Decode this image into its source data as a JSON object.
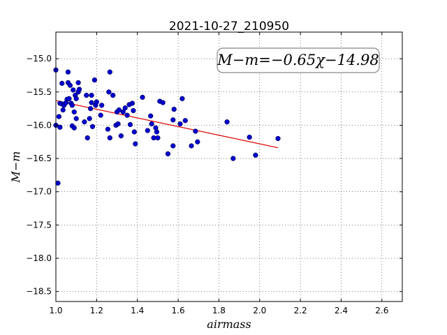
{
  "chart_data": {
    "type": "scatter",
    "title": "2021-10-27_210950",
    "xlabel": "airmass",
    "ylabel": "M−m",
    "xlim": [
      1.0,
      2.7
    ],
    "ylim": [
      -18.65,
      -14.6
    ],
    "x_ticks": [
      1.0,
      1.2,
      1.4,
      1.6,
      1.8,
      2.0,
      2.2,
      2.4,
      2.6
    ],
    "x_tick_labels": [
      "1.0",
      "1.2",
      "1.4",
      "1.6",
      "1.8",
      "2.0",
      "2.2",
      "2.4",
      "2.6"
    ],
    "y_ticks": [
      -15.0,
      -15.5,
      -16.0,
      -16.5,
      -17.0,
      -17.5,
      -18.0,
      -18.5
    ],
    "y_tick_labels": [
      "−15.0",
      "−15.5",
      "−16.0",
      "−16.5",
      "−17.0",
      "−17.5",
      "−18.0",
      "−18.5"
    ],
    "grid": true,
    "annotation": "M−m=−0.65χ−14.98",
    "fit_line": {
      "slope": -0.65,
      "intercept": -14.98,
      "x_range": [
        1.0,
        2.09
      ],
      "color": "#e00000"
    },
    "marker_color": "#0000cc",
    "points": [
      [
        1.0,
        -15.17
      ],
      [
        1.0,
        -16.0
      ],
      [
        1.01,
        -16.87
      ],
      [
        1.015,
        -15.87
      ],
      [
        1.02,
        -15.67
      ],
      [
        1.02,
        -16.03
      ],
      [
        1.03,
        -15.68
      ],
      [
        1.03,
        -15.37
      ],
      [
        1.035,
        -15.77
      ],
      [
        1.04,
        -15.7
      ],
      [
        1.05,
        -15.66
      ],
      [
        1.055,
        -15.61
      ],
      [
        1.06,
        -15.36
      ],
      [
        1.06,
        -15.2
      ],
      [
        1.065,
        -15.6
      ],
      [
        1.07,
        -15.4
      ],
      [
        1.075,
        -15.67
      ],
      [
        1.08,
        -15.7
      ],
      [
        1.08,
        -16.01
      ],
      [
        1.085,
        -15.47
      ],
      [
        1.09,
        -15.8
      ],
      [
        1.09,
        -16.04
      ],
      [
        1.095,
        -15.55
      ],
      [
        1.1,
        -15.9
      ],
      [
        1.1,
        -15.6
      ],
      [
        1.11,
        -15.5
      ],
      [
        1.11,
        -15.36
      ],
      [
        1.115,
        -15.46
      ],
      [
        1.14,
        -15.95
      ],
      [
        1.15,
        -15.55
      ],
      [
        1.155,
        -16.19
      ],
      [
        1.165,
        -15.9
      ],
      [
        1.17,
        -15.75
      ],
      [
        1.175,
        -15.55
      ],
      [
        1.175,
        -15.66
      ],
      [
        1.18,
        -16.02
      ],
      [
        1.19,
        -15.32
      ],
      [
        1.195,
        -15.7
      ],
      [
        1.2,
        -15.65
      ],
      [
        1.22,
        -15.85
      ],
      [
        1.225,
        -15.7
      ],
      [
        1.255,
        -16.06
      ],
      [
        1.26,
        -15.5
      ],
      [
        1.265,
        -15.2
      ],
      [
        1.265,
        -16.19
      ],
      [
        1.28,
        -15.55
      ],
      [
        1.295,
        -16.0
      ],
      [
        1.3,
        -15.8
      ],
      [
        1.305,
        -15.98
      ],
      [
        1.31,
        -15.77
      ],
      [
        1.32,
        -16.16
      ],
      [
        1.33,
        -15.8
      ],
      [
        1.34,
        -15.74
      ],
      [
        1.35,
        -15.85
      ],
      [
        1.36,
        -15.69
      ],
      [
        1.365,
        -15.99
      ],
      [
        1.375,
        -15.67
      ],
      [
        1.38,
        -15.78
      ],
      [
        1.385,
        -16.1
      ],
      [
        1.39,
        -16.28
      ],
      [
        1.425,
        -15.58
      ],
      [
        1.45,
        -16.08
      ],
      [
        1.465,
        -15.86
      ],
      [
        1.47,
        -15.98
      ],
      [
        1.48,
        -16.19
      ],
      [
        1.49,
        -16.04
      ],
      [
        1.495,
        -16.1
      ],
      [
        1.5,
        -16.19
      ],
      [
        1.51,
        -15.64
      ],
      [
        1.525,
        -15.66
      ],
      [
        1.55,
        -16.43
      ],
      [
        1.575,
        -16.31
      ],
      [
        1.575,
        -15.92
      ],
      [
        1.58,
        -15.76
      ],
      [
        1.61,
        -15.98
      ],
      [
        1.62,
        -15.6
      ],
      [
        1.635,
        -15.93
      ],
      [
        1.665,
        -16.31
      ],
      [
        1.685,
        -16.09
      ],
      [
        1.695,
        -16.25
      ],
      [
        1.84,
        -15.95
      ],
      [
        1.87,
        -16.5
      ],
      [
        1.95,
        -16.18
      ],
      [
        1.98,
        -16.45
      ],
      [
        2.09,
        -16.2
      ]
    ]
  }
}
